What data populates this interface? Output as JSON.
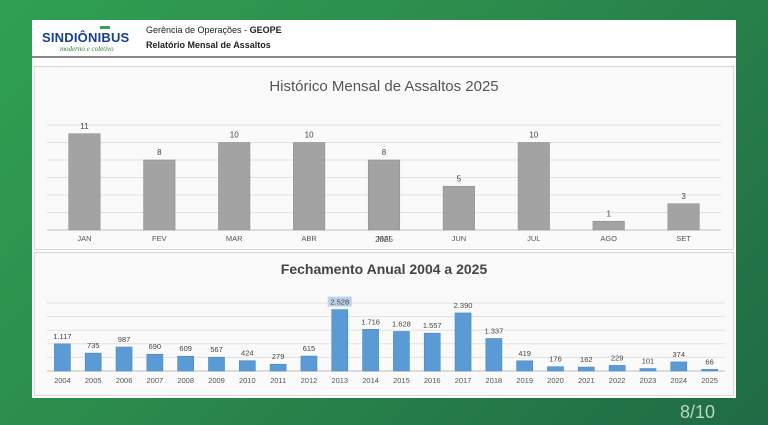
{
  "header": {
    "logo": "SINDIÔNIBUS",
    "logo_tagline": "moderno e coletivo",
    "line1_prefix": "Gerência de Operações - ",
    "line1_bold": "GEOPE",
    "line2": "Relatório Mensal de Assaltos"
  },
  "page_number": "8/10",
  "colors": {
    "background": "#2b8a4c",
    "gray_bar": "#a3a3a3",
    "blue_bar": "#5b9bd5"
  },
  "chart_data": [
    {
      "type": "bar",
      "title": "Histórico Mensal de Assaltos 2025",
      "xlabel": "2025",
      "categories": [
        "JAN",
        "FEV",
        "MAR",
        "ABR",
        "MAI",
        "JUN",
        "JUL",
        "AGO",
        "SET"
      ],
      "values": [
        11,
        8,
        10,
        10,
        8,
        5,
        10,
        1,
        3
      ],
      "value_labels": [
        "11",
        "8",
        "10",
        "10",
        "8",
        "5",
        "10",
        "1",
        "3"
      ],
      "ylim": [
        0,
        12
      ],
      "grid": true
    },
    {
      "type": "bar",
      "title": "Fechamento Anual 2004 a 2025",
      "categories": [
        "2004",
        "2005",
        "2006",
        "2007",
        "2008",
        "2009",
        "2010",
        "2011",
        "2012",
        "2013",
        "2014",
        "2015",
        "2016",
        "2017",
        "2018",
        "2019",
        "2020",
        "2021",
        "2022",
        "2023",
        "2024",
        "2025"
      ],
      "values": [
        1117,
        735,
        987,
        690,
        609,
        567,
        424,
        279,
        615,
        2528,
        1716,
        1628,
        1557,
        2390,
        1337,
        419,
        176,
        162,
        229,
        101,
        374,
        66
      ],
      "value_labels": [
        "1.117",
        "735",
        "987",
        "690",
        "609",
        "567",
        "424",
        "279",
        "615",
        "2.528",
        "1.716",
        "1.628",
        "1.557",
        "2.390",
        "1.337",
        "419",
        "176",
        "162",
        "229",
        "101",
        "374",
        "66"
      ],
      "highlighted_label": "2.528",
      "ylim": [
        0,
        2800
      ],
      "grid": true
    }
  ]
}
